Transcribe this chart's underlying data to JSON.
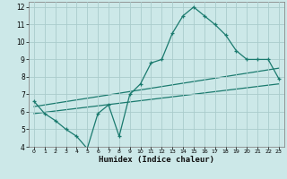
{
  "xlabel": "Humidex (Indice chaleur)",
  "bg_color": "#cce8e8",
  "grid_color": "#aacccc",
  "line_color": "#1a7a6e",
  "xlim": [
    -0.5,
    23.5
  ],
  "ylim": [
    4,
    12.3
  ],
  "xticks": [
    0,
    1,
    2,
    3,
    4,
    5,
    6,
    7,
    8,
    9,
    10,
    11,
    12,
    13,
    14,
    15,
    16,
    17,
    18,
    19,
    20,
    21,
    22,
    23
  ],
  "yticks": [
    4,
    5,
    6,
    7,
    8,
    9,
    10,
    11,
    12
  ],
  "curve1_x": [
    0,
    1,
    2,
    3,
    4,
    5,
    6,
    7,
    8,
    9,
    10,
    11,
    12,
    13,
    14,
    15,
    16,
    17,
    18,
    19,
    20,
    21,
    22,
    23
  ],
  "curve1_y": [
    6.6,
    5.9,
    5.5,
    5.0,
    4.6,
    3.9,
    5.9,
    6.4,
    4.6,
    7.0,
    7.6,
    8.8,
    9.0,
    10.5,
    11.5,
    12.0,
    11.5,
    11.0,
    10.4,
    9.5,
    9.0,
    9.0,
    9.0,
    7.9
  ],
  "line1_x": [
    0,
    23
  ],
  "line1_y": [
    5.9,
    7.6
  ],
  "line2_x": [
    0,
    23
  ],
  "line2_y": [
    6.3,
    8.5
  ]
}
